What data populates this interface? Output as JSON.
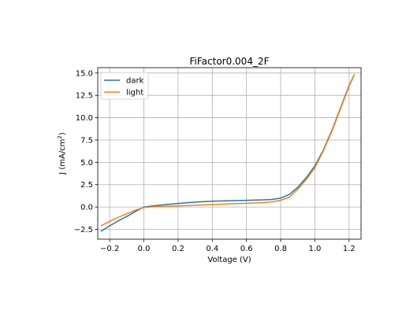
{
  "chart_data": {
    "type": "line",
    "title": "FiFactor0.004_2F",
    "xlabel": "Voltage (V)",
    "ylabel_main": "J (mA/cm",
    "ylabel_sup": "2",
    "ylabel_close": ")",
    "xlim": [
      -0.27,
      1.27
    ],
    "ylim": [
      -3.6,
      15.6
    ],
    "xticks": [
      -0.2,
      0.0,
      0.2,
      0.4,
      0.6,
      0.8,
      1.0,
      1.2
    ],
    "xtick_labels": [
      "−0.2",
      "0.0",
      "0.2",
      "0.4",
      "0.6",
      "0.8",
      "1.0",
      "1.2"
    ],
    "yticks": [
      -2.5,
      0.0,
      2.5,
      5.0,
      7.5,
      10.0,
      12.5,
      15.0
    ],
    "ytick_labels": [
      "−2.5",
      "0.0",
      "2.5",
      "5.0",
      "7.5",
      "10.0",
      "12.5",
      "15.0"
    ],
    "grid": true,
    "legend_position": "top-left",
    "series": [
      {
        "name": "dark",
        "color": "#1f77b4",
        "x": [
          -0.25,
          -0.2,
          -0.15,
          -0.1,
          -0.05,
          0.0,
          0.05,
          0.1,
          0.2,
          0.3,
          0.4,
          0.5,
          0.6,
          0.7,
          0.75,
          0.8,
          0.85,
          0.9,
          0.95,
          1.0,
          1.05,
          1.1,
          1.15,
          1.2,
          1.23
        ],
        "y": [
          -2.7,
          -2.1,
          -1.55,
          -1.05,
          -0.5,
          0.0,
          0.12,
          0.22,
          0.4,
          0.55,
          0.65,
          0.7,
          0.75,
          0.8,
          0.85,
          1.0,
          1.4,
          2.2,
          3.3,
          4.6,
          6.4,
          8.6,
          11.1,
          13.6,
          14.8
        ]
      },
      {
        "name": "light",
        "color": "#ff7f0e",
        "x": [
          -0.25,
          -0.2,
          -0.15,
          -0.1,
          -0.05,
          0.0,
          0.05,
          0.1,
          0.2,
          0.3,
          0.4,
          0.5,
          0.6,
          0.7,
          0.75,
          0.8,
          0.85,
          0.9,
          0.95,
          1.0,
          1.05,
          1.1,
          1.15,
          1.2,
          1.23
        ],
        "y": [
          -2.1,
          -1.6,
          -1.15,
          -0.75,
          -0.35,
          -0.05,
          0.02,
          0.05,
          0.12,
          0.2,
          0.27,
          0.35,
          0.42,
          0.5,
          0.58,
          0.75,
          1.1,
          2.0,
          3.1,
          4.4,
          6.3,
          8.5,
          11.0,
          13.5,
          14.8
        ]
      }
    ]
  }
}
